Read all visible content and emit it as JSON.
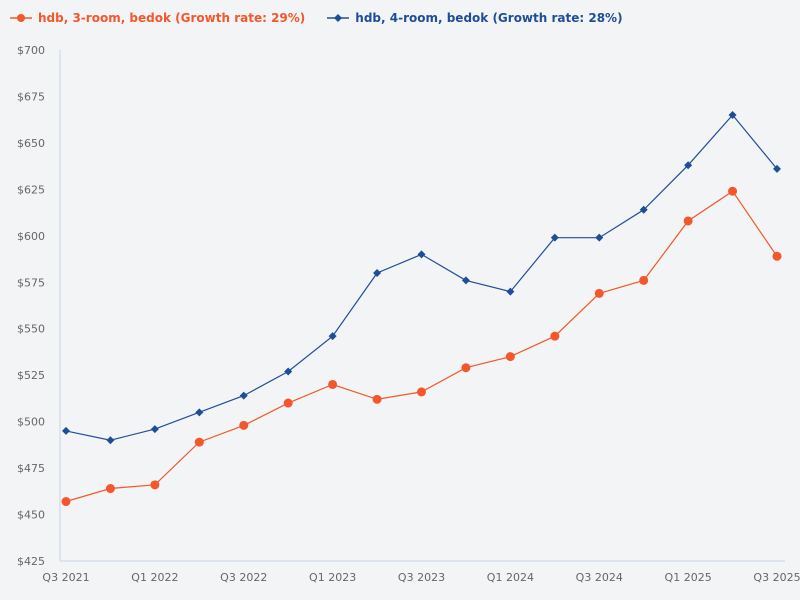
{
  "legend": {
    "items": [
      {
        "label": "hdb, 3-room, bedok (Growth rate: 29%)",
        "color": "#f4572b",
        "marker": "circle"
      },
      {
        "label": "hdb, 4-room, bedok (Growth rate: 28%)",
        "color": "#1f4e99",
        "marker": "diamond"
      }
    ]
  },
  "chart_data": {
    "type": "line",
    "title": "",
    "xlabel": "",
    "ylabel": "",
    "ylim": [
      425,
      700
    ],
    "yticks": [
      425,
      450,
      475,
      500,
      525,
      550,
      575,
      600,
      625,
      650,
      675,
      700
    ],
    "ytick_prefix": "$",
    "grid": false,
    "legend_position": "top-left",
    "categories": [
      "Q3 2021",
      "Q4 2021",
      "Q1 2022",
      "Q2 2022",
      "Q3 2022",
      "Q4 2022",
      "Q1 2023",
      "Q2 2023",
      "Q3 2023",
      "Q4 2023",
      "Q1 2024",
      "Q2 2024",
      "Q3 2024",
      "Q4 2024",
      "Q1 2025",
      "Q2 2025",
      "Q3 2025"
    ],
    "xtick_labels": [
      "Q3 2021",
      "",
      "Q1 2022",
      "",
      "Q3 2022",
      "",
      "Q1 2023",
      "",
      "Q3 2023",
      "",
      "Q1 2024",
      "",
      "Q3 2024",
      "",
      "Q1 2025",
      "",
      "Q3 2025"
    ],
    "series": [
      {
        "name": "hdb, 3-room, bedok (Growth rate: 29%)",
        "color": "#f4572b",
        "marker": "circle",
        "values": [
          457,
          464,
          466,
          489,
          498,
          510,
          520,
          512,
          516,
          529,
          535,
          546,
          569,
          576,
          608,
          624,
          589
        ]
      },
      {
        "name": "hdb, 4-room, bedok (Growth rate: 28%)",
        "color": "#1f4e99",
        "marker": "diamond",
        "values": [
          495,
          490,
          496,
          505,
          514,
          527,
          546,
          580,
          590,
          576,
          570,
          599,
          599,
          614,
          638,
          665,
          636
        ]
      }
    ]
  }
}
